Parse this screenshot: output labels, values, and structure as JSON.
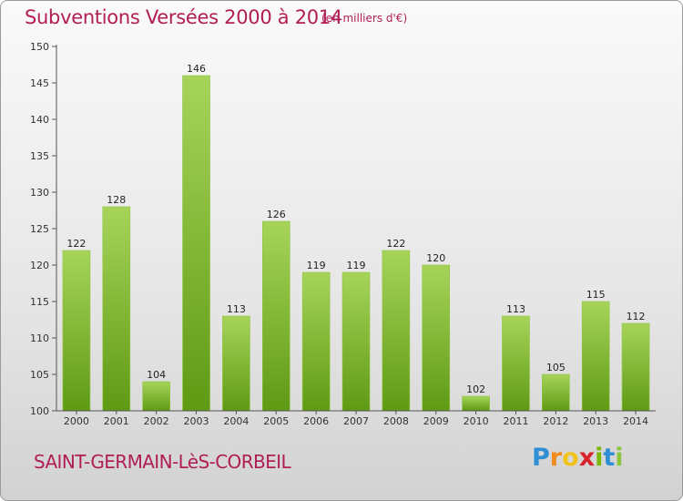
{
  "header": {
    "title": "Subventions Versées 2000 à 2014",
    "unit": "(en milliers d'€)"
  },
  "footer": {
    "commune": "SAINT-GERMAIN-LèS-CORBEIL",
    "logo_letters": [
      "P",
      "r",
      "o",
      "x",
      "i",
      "t",
      "i"
    ],
    "logo_colors": [
      "#2e8fd6",
      "#f28a1c",
      "#f2c21c",
      "#d8232a",
      "#7ab800",
      "#2e8fd6",
      "#8cc63f"
    ]
  },
  "chart_data": {
    "type": "bar",
    "title": "Subventions Versées 2000 à 2014",
    "subtitle": "(en milliers d'€)",
    "categories": [
      "2000",
      "2001",
      "2002",
      "2003",
      "2004",
      "2005",
      "2006",
      "2007",
      "2008",
      "2009",
      "2010",
      "2011",
      "2012",
      "2013",
      "2014"
    ],
    "values": [
      122,
      128,
      104,
      146,
      113,
      126,
      119,
      119,
      122,
      120,
      102,
      113,
      105,
      115,
      112
    ],
    "ylim": [
      100,
      150
    ],
    "yticks": [
      100,
      105,
      110,
      115,
      120,
      125,
      130,
      135,
      140,
      145,
      150
    ],
    "grid": false,
    "bar_color_top": "#a6d45a",
    "bar_color_bottom": "#5f9a14"
  }
}
